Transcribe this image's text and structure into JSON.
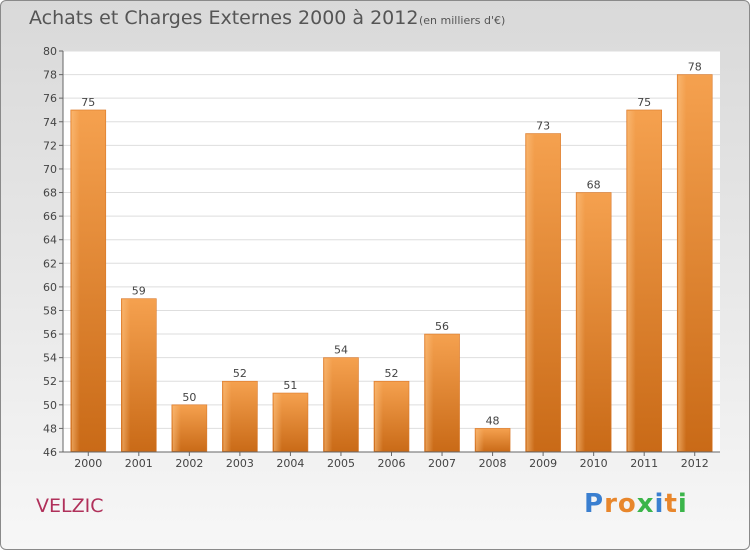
{
  "chart_data": {
    "type": "bar",
    "title": "Achats et Charges Externes 2000 à 2012",
    "subtitle": "(en milliers d'€)",
    "categories": [
      "2000",
      "2001",
      "2002",
      "2003",
      "2004",
      "2005",
      "2006",
      "2007",
      "2008",
      "2009",
      "2010",
      "2011",
      "2012"
    ],
    "values": [
      75,
      59,
      50,
      52,
      51,
      54,
      52,
      56,
      48,
      73,
      68,
      75,
      78
    ],
    "ylim": [
      46,
      80
    ],
    "yticks": [
      46,
      48,
      50,
      52,
      54,
      56,
      58,
      60,
      62,
      64,
      66,
      68,
      70,
      72,
      74,
      76,
      78,
      80
    ],
    "grid": true,
    "bar_color": "#f0913a"
  },
  "footer": {
    "location": "VELZIC",
    "logo_letters": [
      {
        "ch": "P",
        "color": "#3a7fd0"
      },
      {
        "ch": "r",
        "color": "#e8862b"
      },
      {
        "ch": "o",
        "color": "#e8862b"
      },
      {
        "ch": "x",
        "color": "#3bb54a"
      },
      {
        "ch": "i",
        "color": "#3a7fd0"
      },
      {
        "ch": "t",
        "color": "#e8862b"
      },
      {
        "ch": "i",
        "color": "#3bb54a"
      }
    ]
  }
}
